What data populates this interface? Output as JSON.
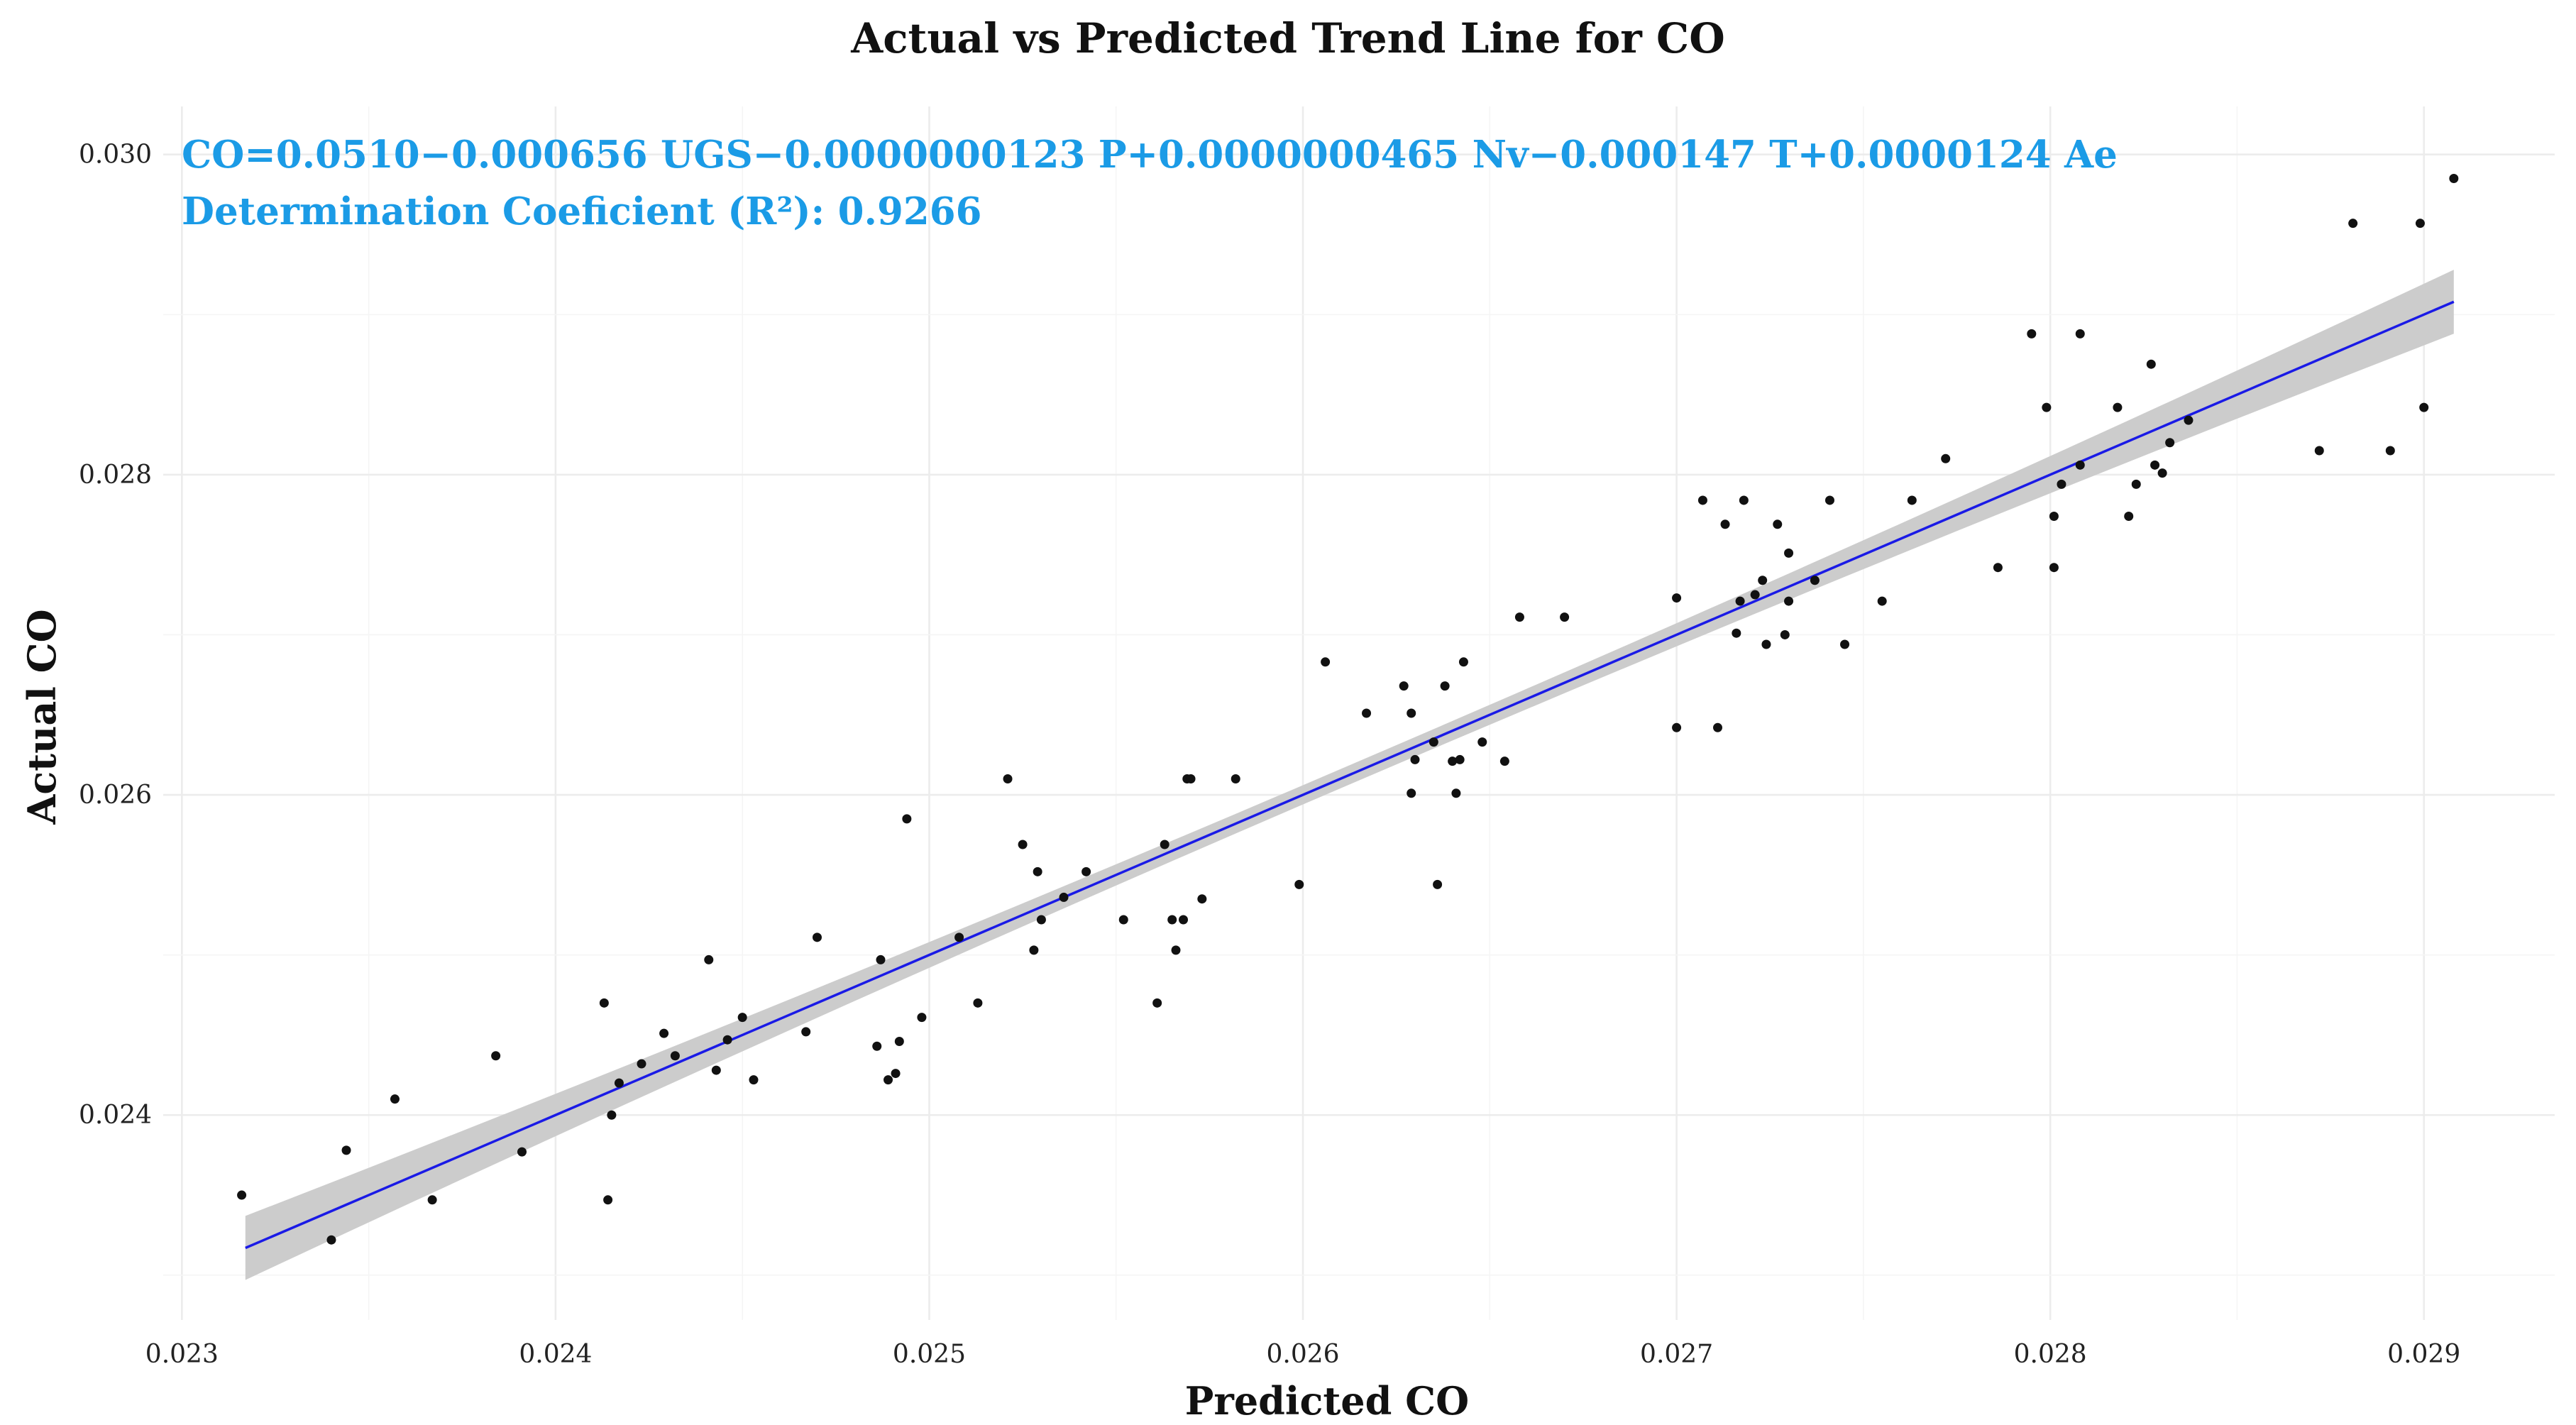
{
  "chart_data": {
    "type": "scatter",
    "title": "Actual vs Predicted Trend Line for CO",
    "xlabel": "Predicted CO",
    "ylabel": "Actual CO",
    "xlim": [
      0.02295,
      0.02935
    ],
    "ylim": [
      0.02272,
      0.0303
    ],
    "x_ticks": [
      "0.023",
      "0.024",
      "0.025",
      "0.026",
      "0.027",
      "0.028",
      "0.029"
    ],
    "y_ticks": [
      "0.024",
      "0.026",
      "0.028",
      "0.030"
    ],
    "x_tick_values": [
      0.023,
      0.024,
      0.025,
      0.026,
      0.027,
      0.028,
      0.029
    ],
    "y_tick_values": [
      0.024,
      0.026,
      0.028,
      0.03
    ],
    "annotations": [
      "CO=0.0510−0.000656 UGS−0.0000000123 P+0.0000000465 Nv−0.000147 T+0.0000124 Ae",
      "Determination Coeficient (R²): 0.9266"
    ],
    "trend_line": {
      "x": [
        0.02317,
        0.02908
      ],
      "y": [
        0.02317,
        0.02908
      ],
      "color": "#1a1ae6",
      "confidence_band": {
        "color": "#cccccc",
        "half_width_at_ends": 0.0002,
        "half_width_at_center": 6e-05
      }
    },
    "series": [
      {
        "name": "observations",
        "color": "#111111",
        "points": [
          [
            0.02316,
            0.0235
          ],
          [
            0.0234,
            0.02322
          ],
          [
            0.02344,
            0.02378
          ],
          [
            0.02357,
            0.0241
          ],
          [
            0.02367,
            0.02347
          ],
          [
            0.02384,
            0.02437
          ],
          [
            0.02391,
            0.02377
          ],
          [
            0.02413,
            0.0247
          ],
          [
            0.02414,
            0.02347
          ],
          [
            0.02415,
            0.024
          ],
          [
            0.02417,
            0.0242
          ],
          [
            0.02423,
            0.02432
          ],
          [
            0.02429,
            0.02451
          ],
          [
            0.02432,
            0.02437
          ],
          [
            0.02441,
            0.02497
          ],
          [
            0.02443,
            0.02428
          ],
          [
            0.02446,
            0.02447
          ],
          [
            0.0245,
            0.02461
          ],
          [
            0.02453,
            0.02422
          ],
          [
            0.02467,
            0.02452
          ],
          [
            0.0247,
            0.02511
          ],
          [
            0.02486,
            0.02443
          ],
          [
            0.02487,
            0.02497
          ],
          [
            0.02489,
            0.02422
          ],
          [
            0.02491,
            0.02426
          ],
          [
            0.02492,
            0.02446
          ],
          [
            0.02494,
            0.02585
          ],
          [
            0.02498,
            0.02461
          ],
          [
            0.02508,
            0.02511
          ],
          [
            0.02513,
            0.0247
          ],
          [
            0.02521,
            0.0261
          ],
          [
            0.02525,
            0.02569
          ],
          [
            0.02528,
            0.02503
          ],
          [
            0.02529,
            0.02552
          ],
          [
            0.0253,
            0.02522
          ],
          [
            0.02536,
            0.02536
          ],
          [
            0.02542,
            0.02552
          ],
          [
            0.02552,
            0.02522
          ],
          [
            0.02561,
            0.0247
          ],
          [
            0.02563,
            0.02569
          ],
          [
            0.02565,
            0.02522
          ],
          [
            0.02566,
            0.02503
          ],
          [
            0.02568,
            0.02522
          ],
          [
            0.02569,
            0.0261
          ],
          [
            0.0257,
            0.0261
          ],
          [
            0.02573,
            0.02535
          ],
          [
            0.02582,
            0.0261
          ],
          [
            0.02599,
            0.02544
          ],
          [
            0.02606,
            0.02683
          ],
          [
            0.02617,
            0.02651
          ],
          [
            0.02627,
            0.02668
          ],
          [
            0.02629,
            0.02601
          ],
          [
            0.02629,
            0.02651
          ],
          [
            0.0263,
            0.02622
          ],
          [
            0.02635,
            0.02633
          ],
          [
            0.02636,
            0.02544
          ],
          [
            0.02638,
            0.02668
          ],
          [
            0.0264,
            0.02621
          ],
          [
            0.02641,
            0.02601
          ],
          [
            0.02642,
            0.02622
          ],
          [
            0.02643,
            0.02683
          ],
          [
            0.02648,
            0.02633
          ],
          [
            0.02654,
            0.02621
          ],
          [
            0.02658,
            0.02711
          ],
          [
            0.0267,
            0.02711
          ],
          [
            0.027,
            0.02642
          ],
          [
            0.027,
            0.02723
          ],
          [
            0.02707,
            0.02784
          ],
          [
            0.02711,
            0.02642
          ],
          [
            0.02713,
            0.02769
          ],
          [
            0.02716,
            0.02701
          ],
          [
            0.02717,
            0.02721
          ],
          [
            0.02718,
            0.02784
          ],
          [
            0.02721,
            0.02725
          ],
          [
            0.02723,
            0.02734
          ],
          [
            0.02724,
            0.02694
          ],
          [
            0.02727,
            0.02769
          ],
          [
            0.02729,
            0.027
          ],
          [
            0.0273,
            0.02751
          ],
          [
            0.0273,
            0.02721
          ],
          [
            0.02737,
            0.02734
          ],
          [
            0.02741,
            0.02784
          ],
          [
            0.02745,
            0.02694
          ],
          [
            0.02755,
            0.02721
          ],
          [
            0.02763,
            0.02784
          ],
          [
            0.02772,
            0.0281
          ],
          [
            0.02786,
            0.02742
          ],
          [
            0.02795,
            0.02888
          ],
          [
            0.02799,
            0.02842
          ],
          [
            0.02801,
            0.02742
          ],
          [
            0.02801,
            0.02774
          ],
          [
            0.02803,
            0.02794
          ],
          [
            0.02808,
            0.02888
          ],
          [
            0.02808,
            0.02806
          ],
          [
            0.02818,
            0.02842
          ],
          [
            0.02821,
            0.02774
          ],
          [
            0.02823,
            0.02794
          ],
          [
            0.02827,
            0.02869
          ],
          [
            0.02828,
            0.02806
          ],
          [
            0.0283,
            0.02801
          ],
          [
            0.02832,
            0.0282
          ],
          [
            0.02837,
            0.02834
          ],
          [
            0.02872,
            0.02815
          ],
          [
            0.02881,
            0.02957
          ],
          [
            0.02891,
            0.02815
          ],
          [
            0.02899,
            0.02957
          ],
          [
            0.029,
            0.02842
          ],
          [
            0.02908,
            0.02985
          ]
        ]
      }
    ]
  },
  "colors": {
    "annotation": "#1b9be6",
    "trend_line": "#1a1ae6",
    "band": "#cccccc",
    "points": "#111111",
    "grid": "#ececec"
  }
}
